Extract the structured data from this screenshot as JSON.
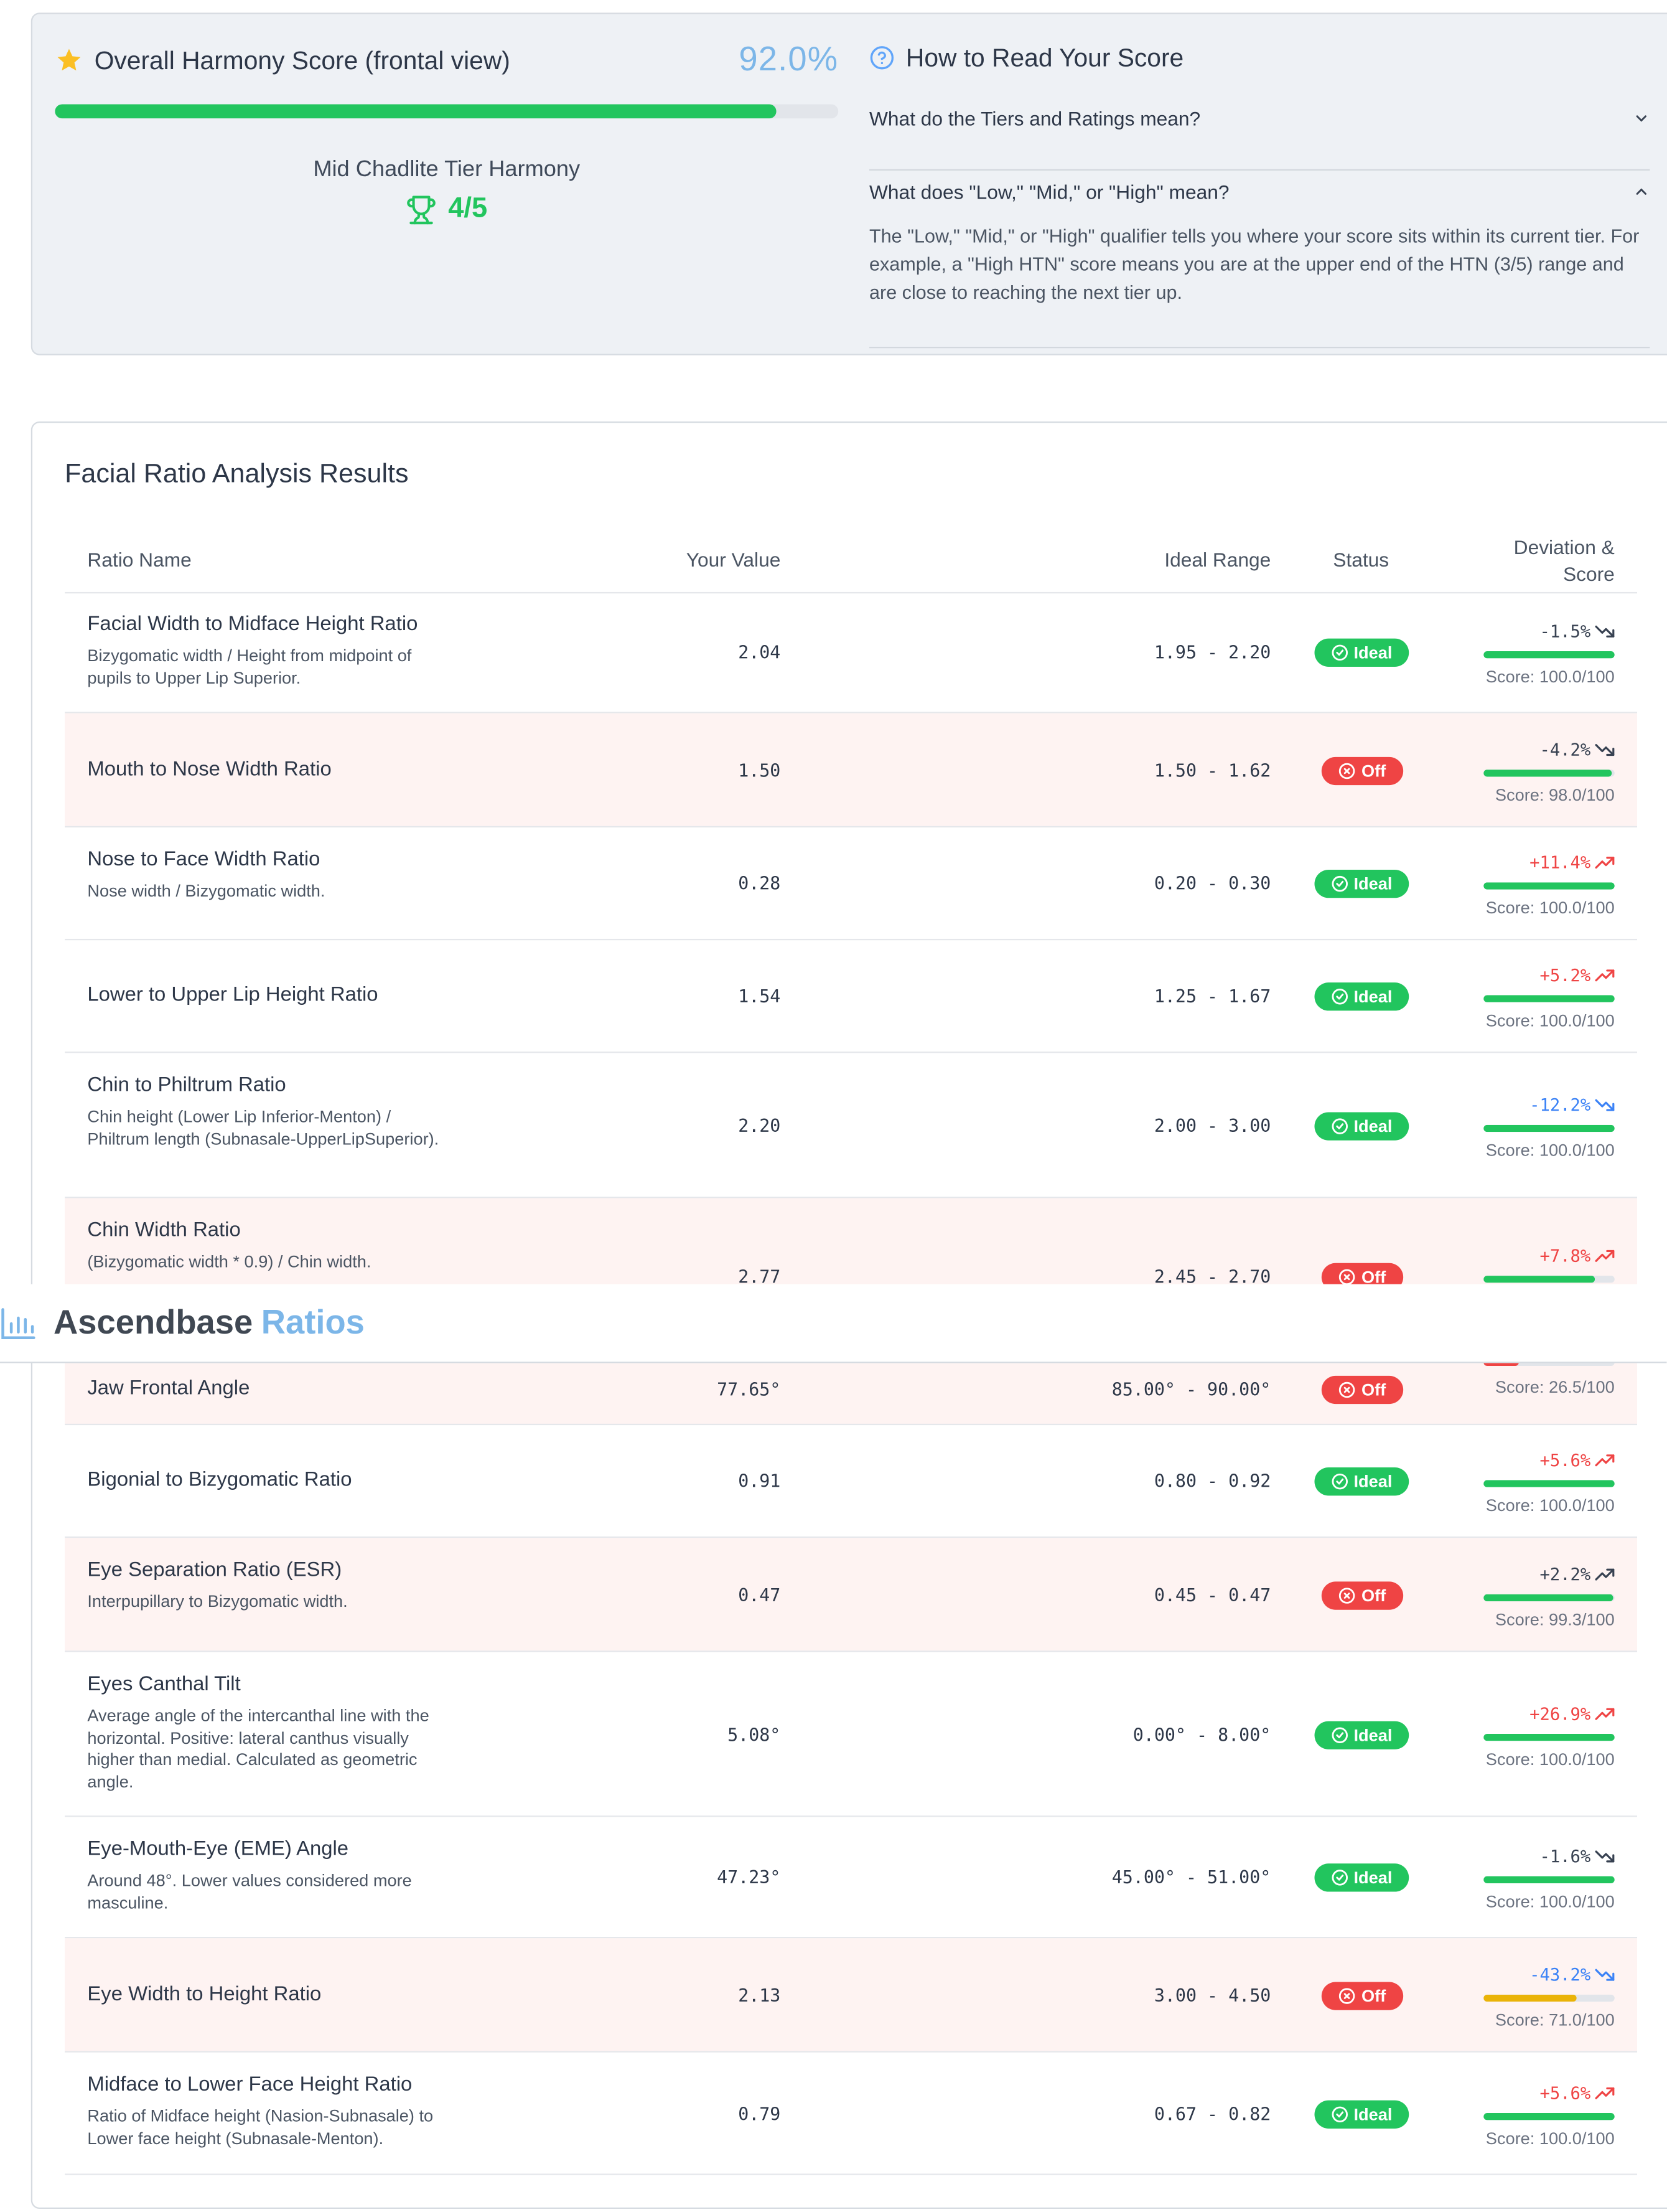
{
  "harmony": {
    "title": "Overall Harmony Score (frontal view)",
    "percent": "92.0%",
    "progress_fraction": 0.92,
    "tier": "Mid Chadlite Tier Harmony",
    "score": "4/5",
    "star_icon": "star-icon",
    "trophy_icon": "trophy-icon"
  },
  "help": {
    "title": "How to Read Your Score",
    "q1": "What do the Tiers and Ratings mean?",
    "q2": "What does \"Low,\" \"Mid,\" or \"High\" mean?",
    "a2": "The \"Low,\" \"Mid,\" or \"High\" qualifier tells you where your score sits within its current tier. For example, a \"High HTN\" score means you are at the upper end of the HTN (3/5) range and are close to reaching the next tier up."
  },
  "results": {
    "title": "Facial Ratio Analysis Results",
    "headers": {
      "name": "Ratio Name",
      "value": "Your Value",
      "range": "Ideal Range",
      "status": "Status",
      "deviation": "Deviation & Score"
    }
  },
  "rows": [
    {
      "name": "Facial Width to Midface Height Ratio",
      "desc": "Bizygomatic width / Height from midpoint of pupils to Upper Lip Superior.",
      "value": "2.04",
      "range": "1.95 - 2.20",
      "status": "Ideal",
      "deviation": "-1.5%",
      "trend": "down",
      "dev_color": "neg",
      "score": "Score: 100.0/100",
      "score_fraction": 1.0,
      "bar_color": "#22c55e"
    },
    {
      "name": "Mouth to Nose Width Ratio",
      "desc": "",
      "value": "1.50",
      "range": "1.50 - 1.62",
      "status": "Off",
      "deviation": "-4.2%",
      "trend": "down",
      "dev_color": "neg",
      "score": "Score: 98.0/100",
      "score_fraction": 0.98,
      "bar_color": "#22c55e"
    },
    {
      "name": "Nose to Face Width Ratio",
      "desc": "Nose width / Bizygomatic width.",
      "value": "0.28",
      "range": "0.20 - 0.30",
      "status": "Ideal",
      "deviation": "+11.4%",
      "trend": "up",
      "dev_color": "pos",
      "score": "Score: 100.0/100",
      "score_fraction": 1.0,
      "bar_color": "#22c55e"
    },
    {
      "name": "Lower to Upper Lip Height Ratio",
      "desc": "",
      "value": "1.54",
      "range": "1.25 - 1.67",
      "status": "Ideal",
      "deviation": "+5.2%",
      "trend": "up",
      "dev_color": "pos",
      "score": "Score: 100.0/100",
      "score_fraction": 1.0,
      "bar_color": "#22c55e"
    },
    {
      "name": "Chin to Philtrum Ratio",
      "desc": "Chin height (Lower Lip Inferior-Menton) / Philtrum length (Subnasale-UpperLipSuperior).",
      "value": "2.20",
      "range": "2.00 - 3.00",
      "status": "Ideal",
      "deviation": "-12.2%",
      "trend": "down",
      "dev_color": "blue",
      "score": "Score: 100.0/100",
      "score_fraction": 1.0,
      "bar_color": "#22c55e"
    },
    {
      "name": "Chin Width Ratio",
      "desc": "(Bizygomatic width * 0.9) / Chin width.",
      "value": "2.77",
      "range": "2.45 - 2.70",
      "status": "Off",
      "deviation": "+7.8%",
      "trend": "up",
      "dev_color": "pos",
      "score": "Score: 85.0/100",
      "score_fraction": 0.85,
      "bar_color": "#22c55e"
    },
    {
      "name": "Jaw Frontal Angle",
      "desc": "",
      "value": "77.65°",
      "range": "85.00° - 90.00°",
      "status": "Off",
      "deviation": "",
      "trend": "",
      "dev_color": "neg",
      "score": "Score: 26.5/100",
      "score_fraction": 0.265,
      "bar_color": "#ef4444"
    },
    {
      "name": "Bigonial to Bizygomatic Ratio",
      "desc": "",
      "value": "0.91",
      "range": "0.80 - 0.92",
      "status": "Ideal",
      "deviation": "+5.6%",
      "trend": "up",
      "dev_color": "pos",
      "score": "Score: 100.0/100",
      "score_fraction": 1.0,
      "bar_color": "#22c55e"
    },
    {
      "name": "Eye Separation Ratio (ESR)",
      "desc": "Interpupillary to Bizygomatic width.",
      "value": "0.47",
      "range": "0.45 - 0.47",
      "status": "Off",
      "deviation": "+2.2%",
      "trend": "up",
      "dev_color": "neg",
      "score": "Score: 99.3/100",
      "score_fraction": 0.993,
      "bar_color": "#22c55e"
    },
    {
      "name": "Eyes Canthal Tilt",
      "desc": "Average angle of the intercanthal line with the horizontal. Positive: lateral canthus visually higher than medial. Calculated as geometric angle.",
      "value": "5.08°",
      "range": "0.00° - 8.00°",
      "status": "Ideal",
      "deviation": "+26.9%",
      "trend": "up",
      "dev_color": "pos",
      "score": "Score: 100.0/100",
      "score_fraction": 1.0,
      "bar_color": "#22c55e"
    },
    {
      "name": "Eye-Mouth-Eye (EME) Angle",
      "desc": "Around 48°. Lower values considered more masculine.",
      "value": "47.23°",
      "range": "45.00° - 51.00°",
      "status": "Ideal",
      "deviation": "-1.6%",
      "trend": "down",
      "dev_color": "neg",
      "score": "Score: 100.0/100",
      "score_fraction": 1.0,
      "bar_color": "#22c55e"
    },
    {
      "name": "Eye Width to Height Ratio",
      "desc": "",
      "value": "2.13",
      "range": "3.00 - 4.50",
      "status": "Off",
      "deviation": "-43.2%",
      "trend": "down",
      "dev_color": "blue",
      "score": "Score: 71.0/100",
      "score_fraction": 0.71,
      "bar_color": "#eab308"
    },
    {
      "name": "Midface to Lower Face Height Ratio",
      "desc": "Ratio of Midface height (Nasion-Subnasale) to Lower face height (Subnasale-Menton).",
      "value": "0.79",
      "range": "0.67 - 0.82",
      "status": "Ideal",
      "deviation": "+5.6%",
      "trend": "up",
      "dev_color": "pos",
      "score": "Score: 100.0/100",
      "score_fraction": 1.0,
      "bar_color": "#22c55e"
    }
  ],
  "brand": {
    "name_a": "Ascendbase",
    "name_b": "Ratios",
    "icon": "bar-chart-icon"
  }
}
